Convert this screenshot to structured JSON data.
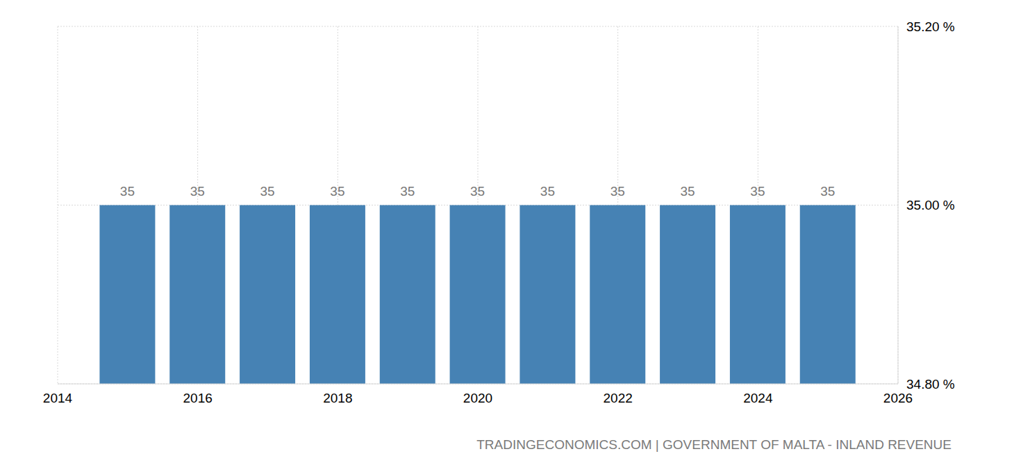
{
  "chart_data": {
    "type": "bar",
    "x": [
      2015,
      2016,
      2017,
      2018,
      2019,
      2020,
      2021,
      2022,
      2023,
      2024,
      2025
    ],
    "values": [
      35,
      35,
      35,
      35,
      35,
      35,
      35,
      35,
      35,
      35,
      35
    ],
    "color": "#4682b4",
    "xlim": [
      2014,
      2026
    ],
    "xticks": [
      2014,
      2016,
      2018,
      2020,
      2022,
      2024,
      2026
    ],
    "ylim": [
      34.8,
      35.2
    ],
    "yticks": [
      {
        "value": 34.8,
        "label": "34.80 %"
      },
      {
        "value": 35.0,
        "label": "35.00 %"
      },
      {
        "value": 35.2,
        "label": "35.20 %"
      }
    ],
    "grid": true,
    "data_labels": true,
    "source": "TRADINGECONOMICS.COM | GOVERNMENT OF MALTA - INLAND REVENUE"
  }
}
